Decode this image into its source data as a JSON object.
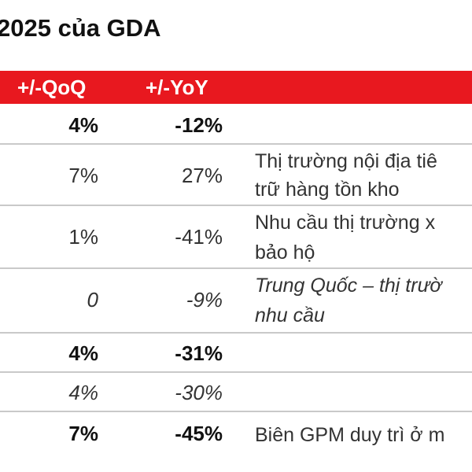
{
  "title": "2025 của GDA",
  "header": {
    "qoq": "+/-QoQ",
    "yoy": "+/-YoY",
    "accent_color": "#e8181f"
  },
  "rows": [
    {
      "qoq": "4%",
      "yoy": "-12%",
      "note": [
        "",
        ""
      ],
      "style": "bold"
    },
    {
      "qoq": "7%",
      "yoy": "27%",
      "note": [
        "Thị trường nội địa tiê",
        "trữ hàng tồn kho"
      ],
      "style": "normal"
    },
    {
      "qoq": "1%",
      "yoy": "-41%",
      "note": [
        "Nhu cầu thị trường x",
        "bảo hộ"
      ],
      "style": "normal"
    },
    {
      "qoq": "0",
      "yoy": "-9%",
      "note": [
        "Trung Quốc – thị trườ",
        "nhu cầu"
      ],
      "style": "italic"
    },
    {
      "qoq": "4%",
      "yoy": "-31%",
      "note": [
        "",
        ""
      ],
      "style": "bold"
    },
    {
      "qoq": "4%",
      "yoy": "-30%",
      "note": [
        "",
        ""
      ],
      "style": "italic"
    },
    {
      "qoq": "7%",
      "yoy": "-45%",
      "note": [
        "Biên GPM duy trì ở m",
        ""
      ],
      "style": "bold"
    }
  ]
}
